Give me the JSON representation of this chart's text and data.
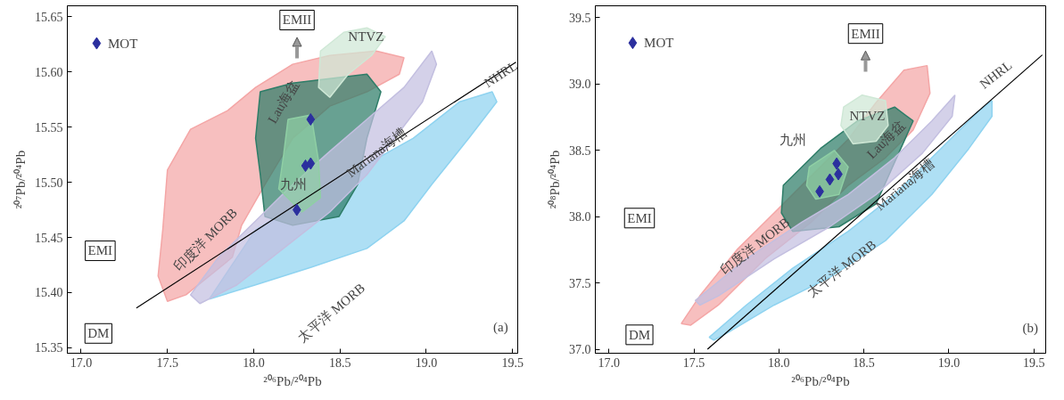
{
  "chart_data": [
    {
      "type": "scatter",
      "xlabel": "²⁰⁶Pb/²⁰⁴Pb",
      "ylabel": "²⁰⁷Pb/²⁰⁴Pb",
      "xlim": [
        16.92,
        19.53
      ],
      "ylim": [
        15.345,
        15.66
      ],
      "grid": false,
      "xticks": [
        {
          "value": 17.0,
          "label": "17.0"
        },
        {
          "value": 17.5,
          "label": "17.5"
        },
        {
          "value": 18.0,
          "label": "18.0"
        },
        {
          "value": 18.5,
          "label": "18.5"
        },
        {
          "value": 19.0,
          "label": "19.0"
        },
        {
          "value": 19.5,
          "label": "19.5"
        }
      ],
      "yticks": [
        {
          "value": 15.35,
          "label": "15.35"
        },
        {
          "value": 15.4,
          "label": "15.40"
        },
        {
          "value": 15.45,
          "label": "15.45"
        },
        {
          "value": 15.5,
          "label": "15.50"
        },
        {
          "value": 15.55,
          "label": "15.55"
        },
        {
          "value": 15.6,
          "label": "15.60"
        },
        {
          "value": 15.65,
          "label": "15.65"
        }
      ],
      "series": [
        {
          "type": "area",
          "color": "#8fd3f0",
          "x": [
            18.011,
            18.548,
            18.925,
            19.194,
            19.382,
            19.409,
            19.247,
            19.032,
            18.871,
            18.656,
            18.333,
            18.011,
            17.742
          ],
          "values": [
            15.457,
            15.507,
            15.54,
            15.573,
            15.582,
            15.573,
            15.54,
            15.498,
            15.465,
            15.44,
            15.423,
            15.407,
            15.394
          ]
        },
        {
          "type": "area",
          "color": "#f4a6a6",
          "x": [
            17.5,
            17.634,
            17.849,
            18.011,
            18.226,
            18.441,
            18.71,
            18.871,
            18.844,
            18.656,
            18.441,
            18.226,
            18.065,
            17.93,
            17.876,
            17.742,
            17.608,
            17.5,
            17.446,
            17.473
          ],
          "values": [
            15.511,
            15.548,
            15.565,
            15.586,
            15.607,
            15.615,
            15.619,
            15.613,
            15.598,
            15.582,
            15.569,
            15.54,
            15.498,
            15.461,
            15.432,
            15.415,
            15.398,
            15.392,
            15.415,
            15.457
          ]
        },
        {
          "type": "area",
          "color": "#2e7d68",
          "x": [
            18.038,
            18.226,
            18.441,
            18.656,
            18.737,
            18.656,
            18.602,
            18.495,
            18.226,
            18.065,
            18.038,
            18.011
          ],
          "values": [
            15.582,
            15.59,
            15.594,
            15.598,
            15.582,
            15.54,
            15.498,
            15.469,
            15.461,
            15.469,
            15.507,
            15.54
          ]
        },
        {
          "type": "area",
          "color": "#c3bfe0",
          "x": [
            17.634,
            17.796,
            18.011,
            18.226,
            18.441,
            18.656,
            18.871,
            19.032,
            19.059,
            18.978,
            18.817,
            18.656,
            18.441,
            18.172,
            17.903,
            17.688
          ],
          "values": [
            15.398,
            15.432,
            15.465,
            15.498,
            15.528,
            15.557,
            15.586,
            15.619,
            15.607,
            15.573,
            15.54,
            15.507,
            15.473,
            15.44,
            15.407,
            15.39
          ]
        },
        {
          "type": "area",
          "color": "#8fcfa4",
          "x": [
            18.199,
            18.333,
            18.376,
            18.387,
            18.28,
            18.145,
            18.172
          ],
          "values": [
            15.557,
            15.561,
            15.519,
            15.486,
            15.473,
            15.494,
            15.523
          ]
        },
        {
          "type": "area",
          "color": "#cfe8d6",
          "x": [
            18.387,
            18.522,
            18.656,
            18.763,
            18.683,
            18.548,
            18.441,
            18.376
          ],
          "values": [
            15.619,
            15.636,
            15.64,
            15.632,
            15.615,
            15.598,
            15.577,
            15.586
          ]
        },
        {
          "type": "line",
          "color": "#000000",
          "x": [
            17.32,
            19.52
          ],
          "values": [
            15.386,
            15.609
          ]
        },
        {
          "name": "MOT",
          "color": "#2b2f9e",
          "marker": "diamond",
          "x": [
            17.09
          ],
          "values": [
            15.626
          ]
        },
        {
          "color": "#2b2f9e",
          "marker": "diamond",
          "x": [
            18.33,
            18.3,
            18.33,
            18.25
          ],
          "values": [
            15.557,
            15.515,
            15.517,
            15.475
          ]
        }
      ],
      "annotations": [
        "EMII",
        "EMI",
        "DM",
        "(a)",
        "NTVZ",
        "Lau海盆",
        "Mariana海槽",
        "九州",
        "印度洋 MORB",
        "太平洋 MORB",
        "NHRL"
      ]
    },
    {
      "type": "scatter",
      "xlabel": "²⁰⁶Pb/²⁰⁴Pb",
      "ylabel": "²⁰⁸Pb/²⁰⁴Pb",
      "xlim": [
        16.92,
        19.57
      ],
      "ylim": [
        36.97,
        39.59
      ],
      "grid": false,
      "xticks": [
        {
          "value": 17.0,
          "label": "17.0"
        },
        {
          "value": 17.5,
          "label": "17.5"
        },
        {
          "value": 18.0,
          "label": "18.0"
        },
        {
          "value": 18.5,
          "label": "18.5"
        },
        {
          "value": 19.0,
          "label": "19.0"
        },
        {
          "value": 19.5,
          "label": "19.5"
        }
      ],
      "yticks": [
        {
          "value": 37.0,
          "label": "37.0"
        },
        {
          "value": 37.5,
          "label": "37.5"
        },
        {
          "value": 38.0,
          "label": "38.0"
        },
        {
          "value": 38.5,
          "label": "38.5"
        },
        {
          "value": 39.0,
          "label": "39.0"
        },
        {
          "value": 39.5,
          "label": "39.5"
        }
      ],
      "series": [
        {
          "type": "area",
          "color": "#8fd3f0",
          "x": [
            17.59,
            17.808,
            18.081,
            18.408,
            18.681,
            18.954,
            19.173,
            19.254,
            19.254,
            19.118,
            18.9,
            18.627,
            18.299,
            17.972,
            17.699,
            17.617
          ],
          "values": [
            37.09,
            37.333,
            37.611,
            37.889,
            38.167,
            38.514,
            38.792,
            38.875,
            38.757,
            38.514,
            38.167,
            37.819,
            37.542,
            37.333,
            37.125,
            37.069
          ]
        },
        {
          "type": "area",
          "color": "#f4a6a6",
          "x": [
            17.426,
            17.535,
            17.753,
            17.972,
            18.19,
            18.408,
            18.572,
            18.736,
            18.872,
            18.889,
            18.79,
            18.627,
            18.408,
            18.19,
            17.917,
            17.644,
            17.48
          ],
          "values": [
            37.194,
            37.403,
            37.75,
            38.028,
            38.306,
            38.583,
            38.861,
            39.104,
            39.139,
            38.931,
            38.653,
            38.444,
            38.236,
            37.958,
            37.681,
            37.333,
            37.181
          ]
        },
        {
          "type": "area",
          "color": "#2e7d68",
          "x": [
            18.026,
            18.245,
            18.463,
            18.681,
            18.79,
            18.681,
            18.572,
            18.354,
            18.081,
            18.015
          ],
          "values": [
            38.236,
            38.514,
            38.722,
            38.826,
            38.722,
            38.41,
            38.097,
            37.924,
            37.889,
            38.028
          ]
        },
        {
          "type": "area",
          "color": "#c3bfe0",
          "x": [
            17.508,
            17.808,
            18.135,
            18.408,
            18.681,
            18.9,
            19.036,
            19.02,
            18.845,
            18.572,
            18.299,
            17.972,
            17.644,
            17.535
          ],
          "values": [
            37.368,
            37.681,
            37.958,
            38.167,
            38.444,
            38.722,
            38.917,
            38.757,
            38.479,
            38.167,
            37.924,
            37.681,
            37.403,
            37.333
          ]
        },
        {
          "type": "area",
          "color": "#8fcfa4",
          "x": [
            18.179,
            18.326,
            18.408,
            18.354,
            18.217,
            18.163
          ],
          "values": [
            38.375,
            38.5,
            38.375,
            38.167,
            38.132,
            38.236
          ]
        },
        {
          "type": "area",
          "color": "#cfe8d6",
          "x": [
            18.381,
            18.49,
            18.627,
            18.643,
            18.572,
            18.436,
            18.365
          ],
          "values": [
            38.826,
            38.917,
            38.875,
            38.688,
            38.569,
            38.549,
            38.688
          ]
        },
        {
          "type": "line",
          "color": "#000000",
          "x": [
            17.58,
            19.55
          ],
          "values": [
            37.0,
            39.22
          ]
        },
        {
          "name": "MOT",
          "color": "#2b2f9e",
          "marker": "diamond",
          "x": [
            17.14
          ],
          "values": [
            39.31
          ]
        },
        {
          "color": "#2b2f9e",
          "marker": "diamond",
          "x": [
            18.34,
            18.3,
            18.35,
            18.24
          ],
          "values": [
            38.4,
            38.28,
            38.32,
            38.19
          ]
        }
      ],
      "annotations": [
        "EMII",
        "EMI",
        "DM",
        "(b)",
        "NTVZ",
        "九州",
        "Lau海盆",
        "Mariana海槽",
        "印度洋 MORB",
        "太平洋 MORB",
        "NHRL"
      ]
    }
  ]
}
